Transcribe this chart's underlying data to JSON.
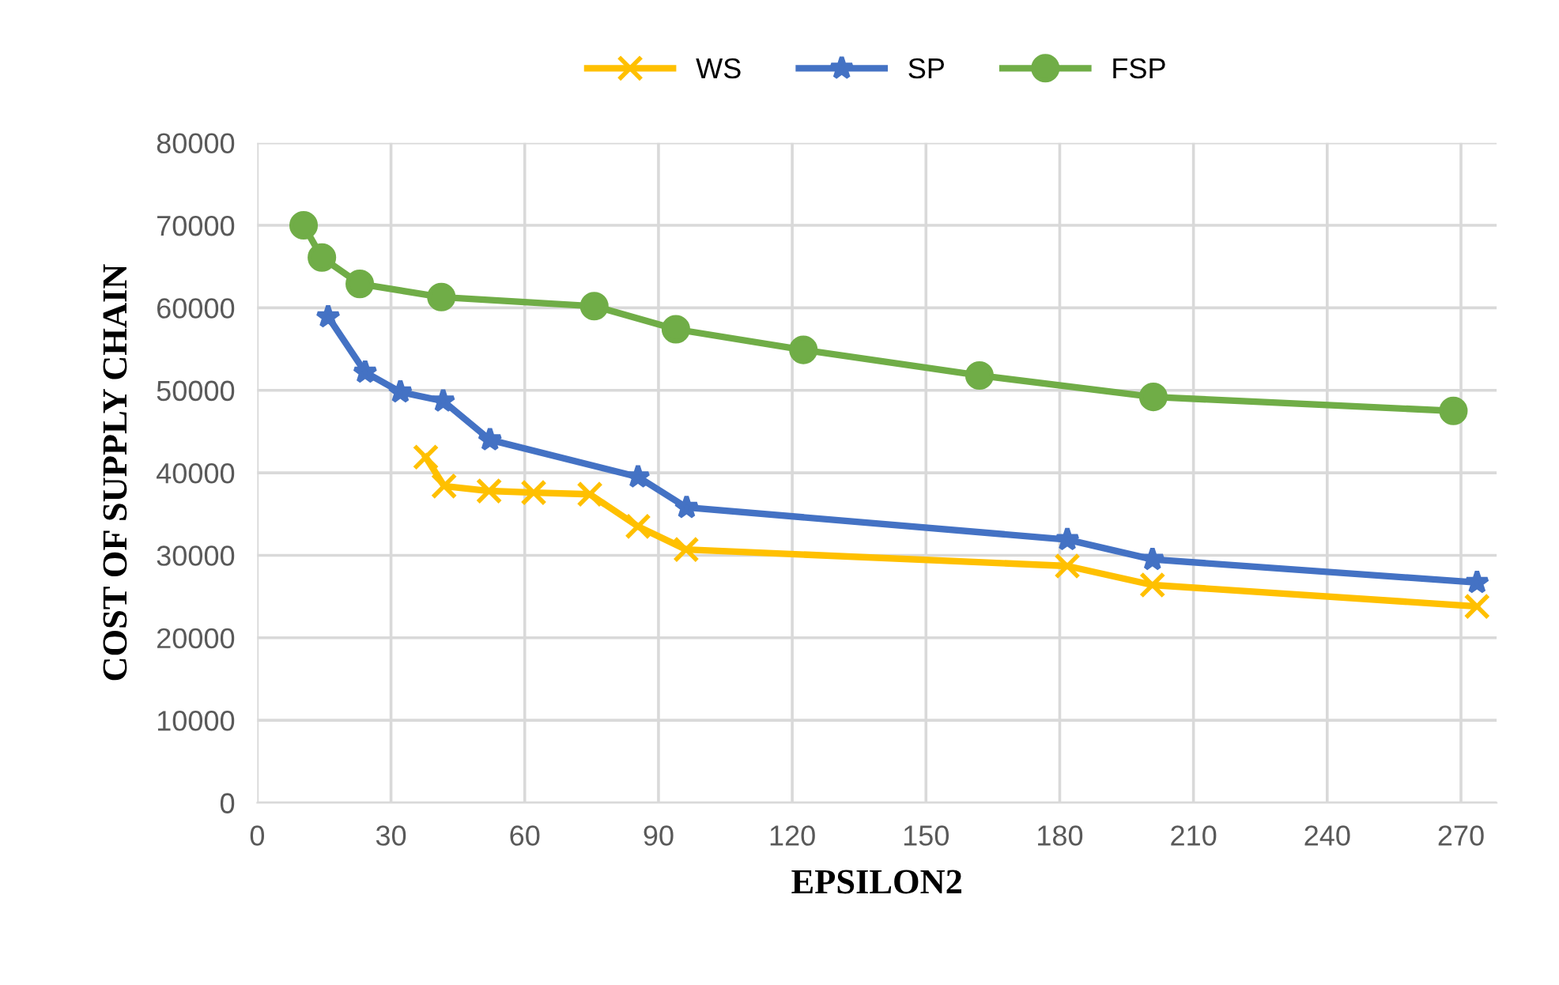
{
  "chart_data": {
    "type": "line",
    "xlabel": "EPSILON2",
    "ylabel": "COST OF SUPPLY CHAIN",
    "xlim": [
      0,
      278
    ],
    "xticks": [
      0,
      30,
      60,
      90,
      120,
      150,
      180,
      210,
      240,
      270
    ],
    "ylim": [
      0,
      80000
    ],
    "yticks": [
      0,
      10000,
      20000,
      30000,
      40000,
      50000,
      60000,
      70000,
      80000
    ],
    "grid": true,
    "legend": "top",
    "line_style": "solid",
    "series": [
      {
        "name": "WS",
        "color": "#ffc000",
        "marker": "cross",
        "x": [
          37.8,
          41.9,
          52,
          62,
          74.6,
          85.4,
          96.2,
          181.7,
          200.8,
          273.6
        ],
        "values": [
          41900,
          38400,
          37800,
          37600,
          37400,
          33500,
          30700,
          28700,
          26400,
          23800
        ]
      },
      {
        "name": "SP",
        "color": "#4472c4",
        "marker": "star",
        "x": [
          15.9,
          24.2,
          32.1,
          41.7,
          52.2,
          85.4,
          96.3,
          181.7,
          200.8,
          273.6
        ],
        "values": [
          58900,
          52200,
          49800,
          48700,
          44000,
          39500,
          35800,
          31900,
          29500,
          26700
        ]
      },
      {
        "name": "FSP",
        "color": "#70ad47",
        "marker": "circle",
        "x": [
          10.4,
          14.5,
          23,
          41.3,
          75.6,
          93.9,
          122.5,
          162,
          201,
          268.3
        ],
        "values": [
          70000,
          66100,
          62900,
          61300,
          60200,
          57400,
          54900,
          51800,
          49200,
          47500
        ]
      }
    ]
  }
}
